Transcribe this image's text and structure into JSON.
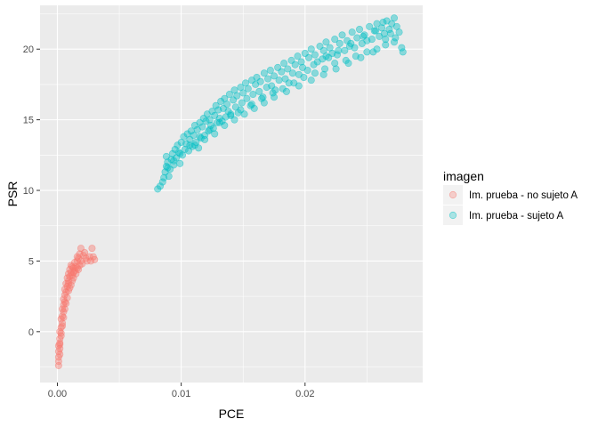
{
  "chart_data": {
    "type": "scatter",
    "title": "",
    "xlabel": "PCE",
    "ylabel": "PSR",
    "xlim": [
      -0.0014,
      0.0295
    ],
    "ylim": [
      -3.6,
      23.1
    ],
    "x_ticks": [
      0.0,
      0.01,
      0.02
    ],
    "x_tick_labels": [
      "0.00",
      "0.01",
      "0.02"
    ],
    "y_ticks": [
      0,
      5,
      10,
      15,
      20
    ],
    "y_tick_labels": [
      "0",
      "5",
      "10",
      "15",
      "20"
    ],
    "grid": true,
    "legend": {
      "title": "imagen",
      "position": "right",
      "entries": [
        "Im. prueba - no sujeto A",
        "Im. prueba - sujeto A"
      ]
    },
    "colors": {
      "panel": "#ebebeb",
      "grid_major": "#ffffff",
      "series_no_sujeto": "#f8766d",
      "series_sujeto": "#00bfc4"
    },
    "series": [
      {
        "name": "Im. prueba - no sujeto A",
        "color": "#f8766d",
        "points": [
          [
            0.0001,
            -2.4
          ],
          [
            0.0001,
            -2.1
          ],
          [
            0.0001,
            -1.8
          ],
          [
            0.0002,
            -1.6
          ],
          [
            0.0001,
            -1.4
          ],
          [
            0.0002,
            -1.2
          ],
          [
            0.0001,
            -1.0
          ],
          [
            0.0002,
            -0.8
          ],
          [
            0.0002,
            -0.5
          ],
          [
            0.0003,
            -0.3
          ],
          [
            0.0002,
            0.0
          ],
          [
            0.0003,
            0.3
          ],
          [
            0.0004,
            0.6
          ],
          [
            0.0003,
            0.9
          ],
          [
            0.0004,
            1.1
          ],
          [
            0.0005,
            1.4
          ],
          [
            0.0004,
            1.6
          ],
          [
            0.0005,
            1.9
          ],
          [
            0.0006,
            2.1
          ],
          [
            0.0005,
            2.3
          ],
          [
            0.0006,
            2.6
          ],
          [
            0.0007,
            2.8
          ],
          [
            0.0006,
            3.0
          ],
          [
            0.0008,
            3.2
          ],
          [
            0.0007,
            3.4
          ],
          [
            0.0009,
            3.6
          ],
          [
            0.0008,
            3.8
          ],
          [
            0.001,
            3.9
          ],
          [
            0.0009,
            4.1
          ],
          [
            0.0011,
            4.2
          ],
          [
            0.001,
            4.4
          ],
          [
            0.0012,
            4.6
          ],
          [
            0.0011,
            4.7
          ],
          [
            0.0013,
            4.5
          ],
          [
            0.0014,
            4.3
          ],
          [
            0.0012,
            4.0
          ],
          [
            0.0015,
            4.6
          ],
          [
            0.0016,
            5.0
          ],
          [
            0.0014,
            4.9
          ],
          [
            0.0017,
            5.2
          ],
          [
            0.0018,
            5.5
          ],
          [
            0.0016,
            5.3
          ],
          [
            0.0019,
            5.0
          ],
          [
            0.002,
            4.8
          ],
          [
            0.0021,
            5.4
          ],
          [
            0.0022,
            5.6
          ],
          [
            0.0023,
            5.2
          ],
          [
            0.0024,
            5.0
          ],
          [
            0.0026,
            5.3
          ],
          [
            0.0027,
            5.0
          ],
          [
            0.0028,
            5.9
          ],
          [
            0.0029,
            5.3
          ],
          [
            0.003,
            5.1
          ],
          [
            0.0019,
            5.9
          ],
          [
            0.0013,
            3.8
          ],
          [
            0.0011,
            3.3
          ],
          [
            0.0009,
            2.9
          ],
          [
            0.0008,
            2.4
          ],
          [
            0.0007,
            2.0
          ],
          [
            0.0006,
            1.6
          ],
          [
            0.0005,
            1.0
          ],
          [
            0.0004,
            0.4
          ],
          [
            0.0003,
            -0.1
          ],
          [
            0.0002,
            -0.9
          ],
          [
            0.0015,
            4.1
          ],
          [
            0.0017,
            4.4
          ],
          [
            0.0018,
            4.7
          ],
          [
            0.0013,
            4.2
          ],
          [
            0.0012,
            3.6
          ],
          [
            0.001,
            3.1
          ],
          [
            0.0009,
            3.4
          ],
          [
            0.0016,
            4.5
          ]
        ]
      },
      {
        "name": "Im. prueba - sujeto A",
        "color": "#00bfc4",
        "points": [
          [
            0.0081,
            10.1
          ],
          [
            0.0083,
            10.3
          ],
          [
            0.0085,
            10.6
          ],
          [
            0.0086,
            10.9
          ],
          [
            0.0087,
            11.3
          ],
          [
            0.0088,
            11.7
          ],
          [
            0.0089,
            12.0
          ],
          [
            0.0088,
            12.4
          ],
          [
            0.009,
            11.0
          ],
          [
            0.0091,
            11.5
          ],
          [
            0.0092,
            12.2
          ],
          [
            0.0093,
            12.6
          ],
          [
            0.0094,
            11.8
          ],
          [
            0.0095,
            12.9
          ],
          [
            0.0096,
            12.3
          ],
          [
            0.0097,
            13.2
          ],
          [
            0.0098,
            12.7
          ],
          [
            0.0099,
            11.9
          ],
          [
            0.01,
            13.4
          ],
          [
            0.0101,
            12.5
          ],
          [
            0.0102,
            13.8
          ],
          [
            0.0103,
            12.9
          ],
          [
            0.0104,
            13.3
          ],
          [
            0.0105,
            14.0
          ],
          [
            0.0106,
            12.8
          ],
          [
            0.0107,
            13.6
          ],
          [
            0.0108,
            14.2
          ],
          [
            0.0109,
            13.1
          ],
          [
            0.011,
            13.9
          ],
          [
            0.0111,
            14.6
          ],
          [
            0.0112,
            13.4
          ],
          [
            0.0113,
            14.3
          ],
          [
            0.0114,
            13.0
          ],
          [
            0.0115,
            14.8
          ],
          [
            0.0116,
            13.7
          ],
          [
            0.0117,
            14.5
          ],
          [
            0.0118,
            15.1
          ],
          [
            0.0119,
            13.9
          ],
          [
            0.012,
            14.9
          ],
          [
            0.0121,
            15.4
          ],
          [
            0.0122,
            14.2
          ],
          [
            0.0123,
            15.0
          ],
          [
            0.0124,
            14.6
          ],
          [
            0.0125,
            15.6
          ],
          [
            0.0126,
            14.4
          ],
          [
            0.0127,
            15.3
          ],
          [
            0.0128,
            16.0
          ],
          [
            0.0129,
            14.8
          ],
          [
            0.013,
            15.7
          ],
          [
            0.0131,
            15.1
          ],
          [
            0.0132,
            16.3
          ],
          [
            0.0133,
            14.9
          ],
          [
            0.0134,
            15.8
          ],
          [
            0.0135,
            16.5
          ],
          [
            0.0136,
            15.2
          ],
          [
            0.0137,
            16.1
          ],
          [
            0.0138,
            15.6
          ],
          [
            0.0139,
            16.8
          ],
          [
            0.014,
            15.4
          ],
          [
            0.0142,
            16.4
          ],
          [
            0.0143,
            17.1
          ],
          [
            0.0144,
            15.9
          ],
          [
            0.0145,
            16.7
          ],
          [
            0.0146,
            15.5
          ],
          [
            0.0148,
            17.3
          ],
          [
            0.0149,
            16.2
          ],
          [
            0.015,
            16.9
          ],
          [
            0.0152,
            17.6
          ],
          [
            0.0153,
            16.5
          ],
          [
            0.0154,
            17.2
          ],
          [
            0.0156,
            16.0
          ],
          [
            0.0157,
            17.8
          ],
          [
            0.0158,
            16.8
          ],
          [
            0.016,
            17.5
          ],
          [
            0.0161,
            18.0
          ],
          [
            0.0163,
            17.0
          ],
          [
            0.0164,
            17.7
          ],
          [
            0.0166,
            16.6
          ],
          [
            0.0167,
            18.3
          ],
          [
            0.0169,
            17.3
          ],
          [
            0.017,
            17.9
          ],
          [
            0.0172,
            18.5
          ],
          [
            0.0173,
            17.4
          ],
          [
            0.0175,
            18.1
          ],
          [
            0.0176,
            17.1
          ],
          [
            0.0178,
            18.7
          ],
          [
            0.0179,
            17.8
          ],
          [
            0.0181,
            18.4
          ],
          [
            0.0183,
            19.0
          ],
          [
            0.0184,
            17.9
          ],
          [
            0.0186,
            18.6
          ],
          [
            0.0187,
            17.6
          ],
          [
            0.0189,
            19.2
          ],
          [
            0.019,
            18.3
          ],
          [
            0.0192,
            18.9
          ],
          [
            0.0194,
            19.5
          ],
          [
            0.0195,
            18.2
          ],
          [
            0.0197,
            19.1
          ],
          [
            0.0198,
            18.7
          ],
          [
            0.02,
            19.7
          ],
          [
            0.0202,
            18.5
          ],
          [
            0.0203,
            19.4
          ],
          [
            0.0205,
            20.0
          ],
          [
            0.0207,
            18.9
          ],
          [
            0.0208,
            19.6
          ],
          [
            0.021,
            19.1
          ],
          [
            0.0212,
            20.2
          ],
          [
            0.0214,
            19.3
          ],
          [
            0.0215,
            19.9
          ],
          [
            0.0217,
            20.5
          ],
          [
            0.0219,
            19.4
          ],
          [
            0.022,
            20.1
          ],
          [
            0.0222,
            19.7
          ],
          [
            0.0224,
            20.7
          ],
          [
            0.0226,
            19.6
          ],
          [
            0.0228,
            20.4
          ],
          [
            0.023,
            21.0
          ],
          [
            0.0232,
            19.9
          ],
          [
            0.0234,
            20.6
          ],
          [
            0.0236,
            20.2
          ],
          [
            0.0238,
            21.2
          ],
          [
            0.024,
            20.1
          ],
          [
            0.0242,
            20.8
          ],
          [
            0.0244,
            21.4
          ],
          [
            0.0246,
            20.4
          ],
          [
            0.0248,
            21.0
          ],
          [
            0.025,
            20.6
          ],
          [
            0.0252,
            21.6
          ],
          [
            0.0254,
            20.7
          ],
          [
            0.0256,
            21.3
          ],
          [
            0.0258,
            21.8
          ],
          [
            0.026,
            20.9
          ],
          [
            0.0262,
            21.5
          ],
          [
            0.0264,
            21.1
          ],
          [
            0.0266,
            22.0
          ],
          [
            0.0268,
            21.4
          ],
          [
            0.027,
            21.8
          ],
          [
            0.0272,
            22.2
          ],
          [
            0.0274,
            21.6
          ],
          [
            0.0276,
            21.2
          ],
          [
            0.0278,
            20.1
          ],
          [
            0.0279,
            19.8
          ],
          [
            0.0272,
            20.5
          ],
          [
            0.0265,
            20.3
          ],
          [
            0.0258,
            20.0
          ],
          [
            0.025,
            19.8
          ],
          [
            0.0241,
            19.5
          ],
          [
            0.0233,
            19.2
          ],
          [
            0.0224,
            19.0
          ],
          [
            0.0216,
            18.6
          ],
          [
            0.0208,
            18.3
          ],
          [
            0.0199,
            18.0
          ],
          [
            0.0191,
            17.6
          ],
          [
            0.0182,
            17.2
          ],
          [
            0.0174,
            16.9
          ],
          [
            0.0165,
            16.5
          ],
          [
            0.0157,
            16.1
          ],
          [
            0.0148,
            15.7
          ],
          [
            0.014,
            15.3
          ],
          [
            0.0131,
            14.8
          ],
          [
            0.0123,
            14.3
          ],
          [
            0.0115,
            13.8
          ],
          [
            0.0107,
            13.2
          ],
          [
            0.0099,
            12.6
          ],
          [
            0.0094,
            12.1
          ],
          [
            0.0089,
            11.6
          ],
          [
            0.0111,
            13.2
          ],
          [
            0.0119,
            13.6
          ],
          [
            0.0127,
            14.0
          ],
          [
            0.0135,
            14.6
          ],
          [
            0.0143,
            15.0
          ],
          [
            0.0151,
            15.4
          ],
          [
            0.0159,
            15.8
          ],
          [
            0.0167,
            16.2
          ],
          [
            0.0175,
            16.6
          ],
          [
            0.0185,
            17.0
          ],
          [
            0.0195,
            17.4
          ],
          [
            0.0205,
            17.8
          ],
          [
            0.0215,
            18.2
          ],
          [
            0.0225,
            18.6
          ],
          [
            0.0235,
            19.0
          ],
          [
            0.0245,
            19.4
          ],
          [
            0.0255,
            19.8
          ],
          [
            0.0265,
            20.7
          ],
          [
            0.0269,
            21.1
          ],
          [
            0.0273,
            20.8
          ],
          [
            0.0263,
            21.9
          ],
          [
            0.0257,
            21.3
          ],
          [
            0.0247,
            20.9
          ],
          [
            0.0237,
            20.4
          ],
          [
            0.0227,
            19.9
          ],
          [
            0.0217,
            19.5
          ]
        ]
      }
    ]
  }
}
